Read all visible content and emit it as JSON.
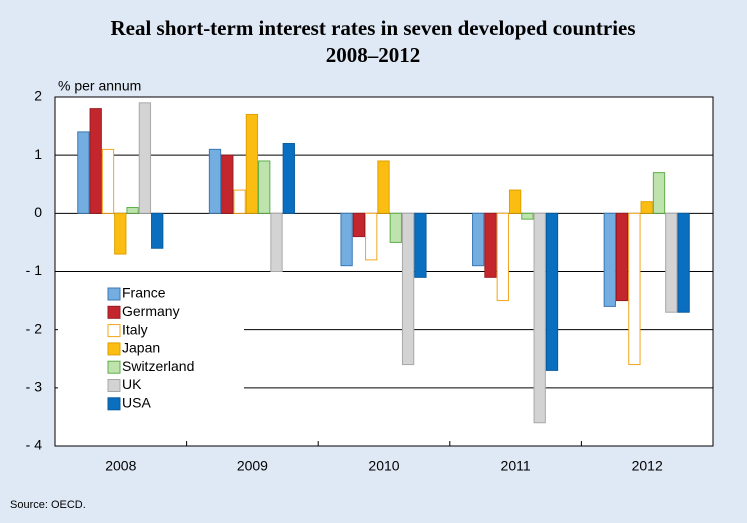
{
  "chart_data": {
    "type": "bar",
    "title": "Real short-term interest rates in seven developed countries",
    "subtitle": "2008–2012",
    "y_label": "% per annum",
    "source": "Source: OECD.",
    "categories": [
      "2008",
      "2009",
      "2010",
      "2011",
      "2012"
    ],
    "series": [
      {
        "name": "France",
        "color": "#74aee0",
        "edgecolor": "#3a78b5",
        "values": [
          1.4,
          1.1,
          -0.9,
          -0.9,
          -1.6
        ]
      },
      {
        "name": "Germany",
        "color": "#c4262e",
        "edgecolor": "#9a1c22",
        "values": [
          1.8,
          1.0,
          -0.4,
          -1.1,
          -1.5
        ]
      },
      {
        "name": "Italy",
        "color": "#ffffff",
        "edgecolor": "#f2a51c",
        "values": [
          1.1,
          0.4,
          -0.8,
          -1.5,
          -2.6
        ]
      },
      {
        "name": "Japan",
        "color": "#fbbd12",
        "edgecolor": "#e0a000",
        "values": [
          -0.7,
          1.7,
          0.9,
          0.4,
          0.2
        ]
      },
      {
        "name": "Switzerland",
        "color": "#bfe3ad",
        "edgecolor": "#5fae4a",
        "values": [
          0.1,
          0.9,
          -0.5,
          -0.1,
          0.7
        ]
      },
      {
        "name": "UK",
        "color": "#d3d3d3",
        "edgecolor": "#a8a8a8",
        "values": [
          1.9,
          -1.0,
          -2.6,
          -3.6,
          -1.7
        ]
      },
      {
        "name": "USA",
        "color": "#0b6fc0",
        "edgecolor": "#085a9c",
        "values": [
          -0.6,
          1.2,
          -1.1,
          -2.7,
          -1.7
        ]
      }
    ],
    "ylim": [
      -4,
      2
    ],
    "yticks": [
      {
        "value": -4,
        "label": "- 4"
      },
      {
        "value": -3,
        "label": "- 3"
      },
      {
        "value": -2,
        "label": "- 2"
      },
      {
        "value": -1,
        "label": "- 1"
      },
      0,
      1,
      2
    ],
    "grid": true,
    "legend": "lower left"
  }
}
